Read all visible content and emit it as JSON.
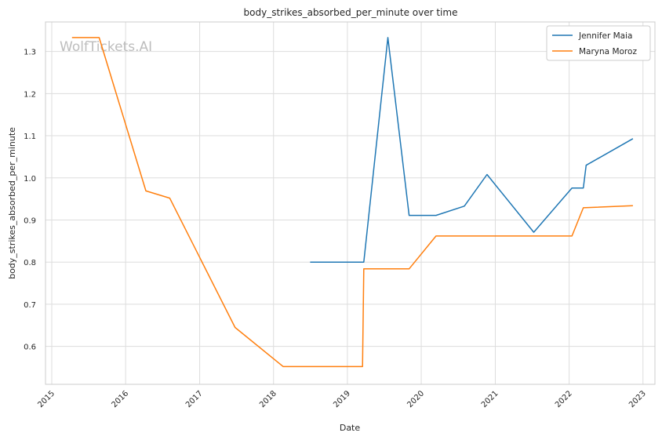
{
  "chart_data": {
    "type": "line",
    "title": "body_strikes_absorbed_per_minute over time",
    "xlabel": "Date",
    "ylabel": "body_strikes_absorbed_per_minute",
    "watermark": "WolfTickets.AI",
    "x_ticks": [
      "2015",
      "2016",
      "2017",
      "2018",
      "2019",
      "2020",
      "2021",
      "2022",
      "2023"
    ],
    "y_ticks": [
      "0.6",
      "0.7",
      "0.8",
      "0.9",
      "1.0",
      "1.1",
      "1.2",
      "1.3"
    ],
    "xlim": [
      "2014-12-01",
      "2023-03-01"
    ],
    "ylim": [
      0.51,
      1.37
    ],
    "grid": true,
    "legend": "top-right",
    "series": [
      {
        "name": "Jennifer Maia",
        "color": "#1f77b4",
        "points": [
          [
            "2018-07-01",
            0.8
          ],
          [
            "2019-03-23",
            0.8
          ],
          [
            "2019-07-20",
            1.333
          ],
          [
            "2019-11-02",
            0.911
          ],
          [
            "2020-03-14",
            0.911
          ],
          [
            "2020-08-01",
            0.933
          ],
          [
            "2020-11-21",
            1.008
          ],
          [
            "2021-07-10",
            0.871
          ],
          [
            "2022-01-15",
            0.976
          ],
          [
            "2022-03-12",
            0.976
          ],
          [
            "2022-03-26",
            1.03
          ],
          [
            "2022-11-12",
            1.093
          ]
        ]
      },
      {
        "name": "Maryna Moroz",
        "color": "#ff7f0e",
        "points": [
          [
            "2015-04-11",
            1.333
          ],
          [
            "2015-08-23",
            1.333
          ],
          [
            "2016-04-10",
            0.969
          ],
          [
            "2016-08-06",
            0.952
          ],
          [
            "2017-06-25",
            0.645
          ],
          [
            "2018-02-18",
            0.552
          ],
          [
            "2019-03-17",
            0.552
          ],
          [
            "2019-03-23",
            0.784
          ],
          [
            "2019-11-02",
            0.784
          ],
          [
            "2020-03-14",
            0.862
          ],
          [
            "2022-01-15",
            0.862
          ],
          [
            "2022-03-12",
            0.929
          ],
          [
            "2022-11-12",
            0.934
          ]
        ]
      }
    ]
  }
}
